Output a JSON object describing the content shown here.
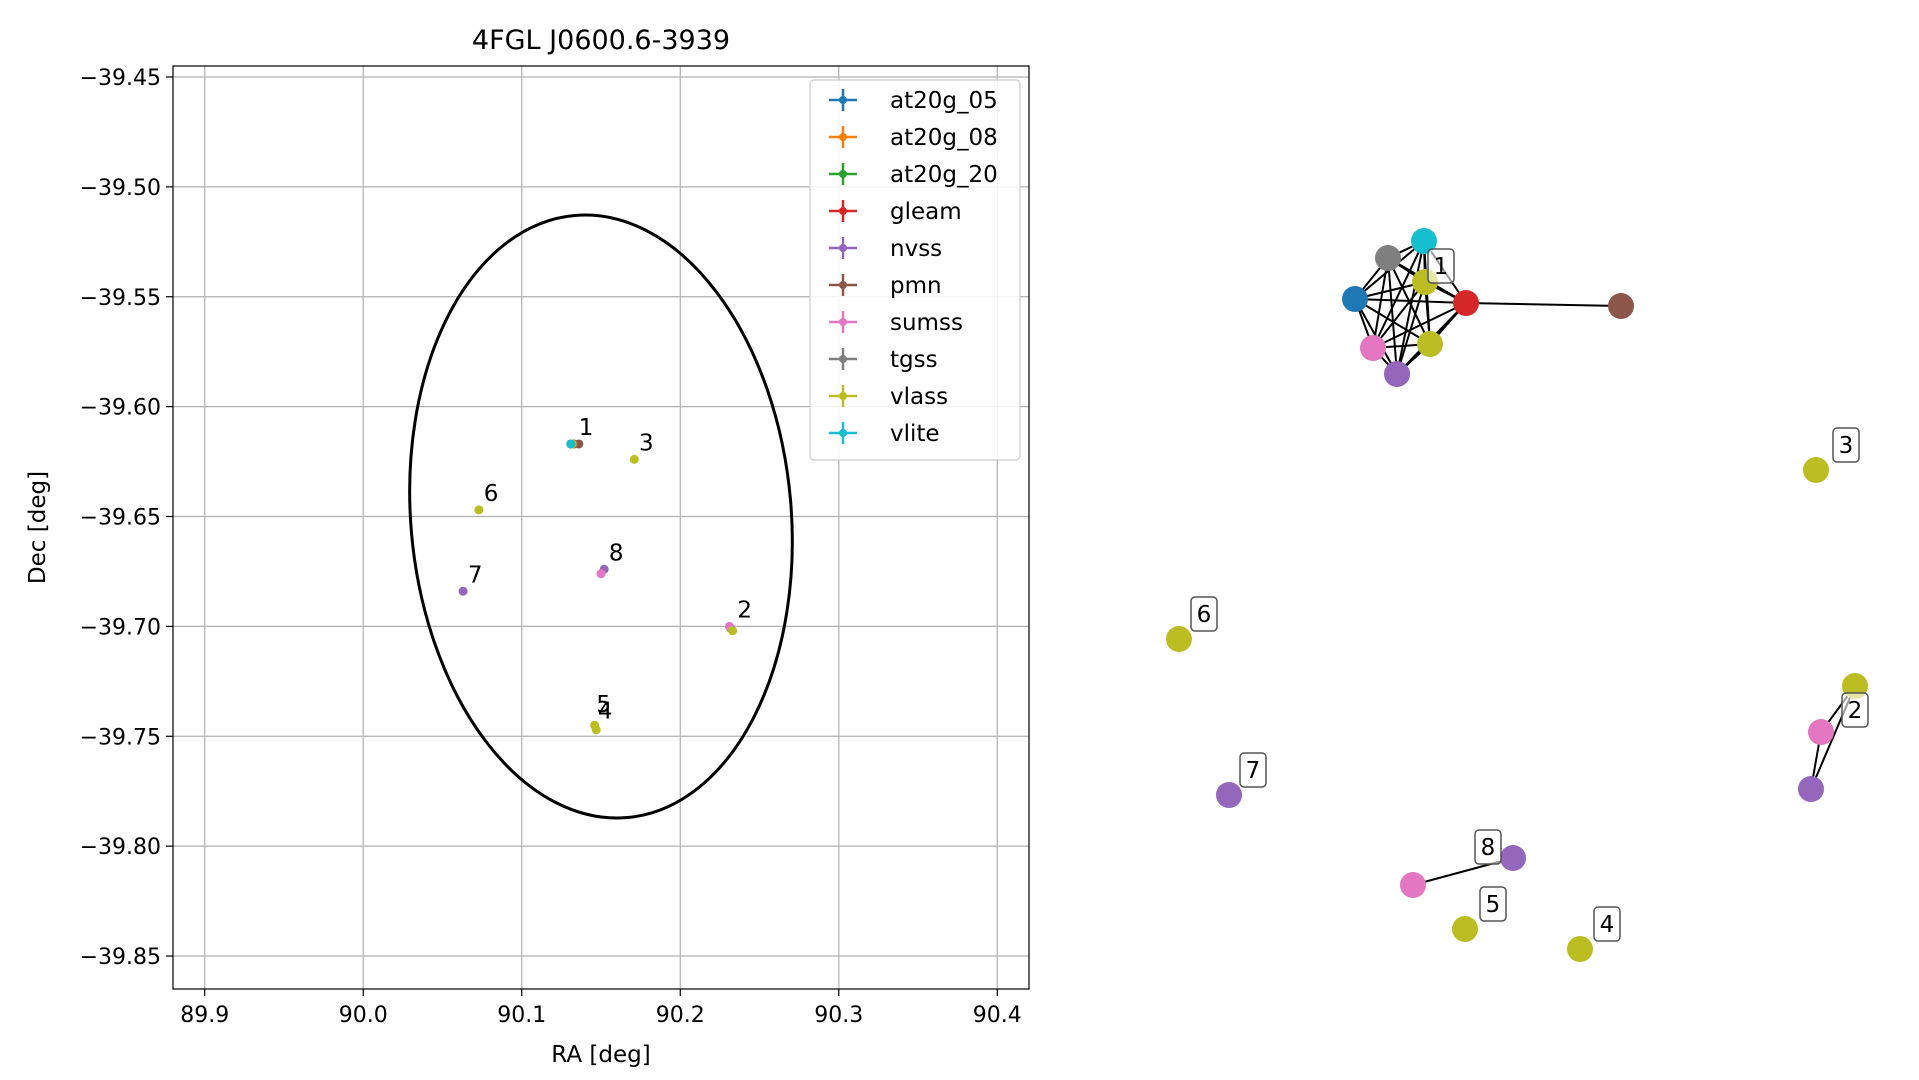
{
  "chart_data": [
    {
      "type": "scatter",
      "title": "4FGL J0600.6-3939",
      "xlabel": "RA [deg]",
      "ylabel": "Dec [deg]",
      "xlim": [
        89.88,
        90.42
      ],
      "ylim": [
        -39.865,
        -39.445
      ],
      "x_ticks": [
        89.9,
        90.0,
        90.1,
        90.2,
        90.3,
        90.4
      ],
      "x_tick_labels": [
        "89.9",
        "90.0",
        "90.1",
        "90.2",
        "90.3",
        "90.4"
      ],
      "y_ticks": [
        -39.45,
        -39.5,
        -39.55,
        -39.6,
        -39.65,
        -39.7,
        -39.75,
        -39.8,
        -39.85
      ],
      "y_tick_labels": [
        "−39.45",
        "−39.50",
        "−39.55",
        "−39.60",
        "−39.65",
        "−39.70",
        "−39.75",
        "−39.80",
        "−39.85"
      ],
      "grid": true,
      "legend_position": "top-right",
      "ellipse": {
        "center": [
          90.15,
          -39.65
        ],
        "semi_width_ra": 0.12,
        "semi_height_dec": 0.1375,
        "rotation_deg": 5
      },
      "series": [
        {
          "name": "at20g_05",
          "color": "#1f77b4",
          "points": [
            [
              90.131,
              -39.617
            ]
          ]
        },
        {
          "name": "at20g_08",
          "color": "#ff7f0e",
          "points": [
            [
              90.131,
              -39.617
            ]
          ]
        },
        {
          "name": "at20g_20",
          "color": "#2ca02c",
          "points": [
            [
              90.131,
              -39.617
            ]
          ]
        },
        {
          "name": "gleam",
          "color": "#d62728",
          "points": [
            [
              90.133,
              -39.617
            ]
          ]
        },
        {
          "name": "nvss",
          "color": "#9467bd",
          "points": [
            [
              90.063,
              -39.684
            ],
            [
              90.152,
              -39.674
            ],
            [
              90.232,
              -39.701
            ]
          ]
        },
        {
          "name": "pmn",
          "color": "#8c564b",
          "points": [
            [
              90.136,
              -39.617
            ]
          ]
        },
        {
          "name": "sumss",
          "color": "#e377c2",
          "points": [
            [
              90.131,
              -39.617
            ],
            [
              90.15,
              -39.676
            ],
            [
              90.231,
              -39.7
            ]
          ]
        },
        {
          "name": "tgss",
          "color": "#7f7f7f",
          "points": [
            [
              90.132,
              -39.617
            ]
          ]
        },
        {
          "name": "vlass",
          "color": "#bcbd22",
          "points": [
            [
              90.132,
              -39.617
            ],
            [
              90.171,
              -39.624
            ],
            [
              90.073,
              -39.647
            ],
            [
              90.146,
              -39.745
            ],
            [
              90.147,
              -39.747
            ],
            [
              90.233,
              -39.702
            ]
          ]
        },
        {
          "name": "vlite",
          "color": "#17becf",
          "points": [
            [
              90.131,
              -39.617
            ]
          ]
        }
      ],
      "cluster_labels": [
        {
          "label": "1",
          "ra": 90.136,
          "dec": -39.613
        },
        {
          "label": "2",
          "ra": 90.236,
          "dec": -39.696
        },
        {
          "label": "3",
          "ra": 90.174,
          "dec": -39.62
        },
        {
          "label": "4",
          "ra": 90.148,
          "dec": -39.742
        },
        {
          "label": "5",
          "ra": 90.147,
          "dec": -39.739
        },
        {
          "label": "6",
          "ra": 90.076,
          "dec": -39.643
        },
        {
          "label": "7",
          "ra": 90.066,
          "dec": -39.68
        },
        {
          "label": "8",
          "ra": 90.155,
          "dec": -39.67
        }
      ]
    },
    {
      "type": "network",
      "nodes": [
        {
          "id": "n_blue",
          "color": "#1f77b4"
        },
        {
          "id": "n_grey",
          "color": "#7f7f7f"
        },
        {
          "id": "n_cyan",
          "color": "#17becf"
        },
        {
          "id": "n_olive1",
          "color": "#bcbd22"
        },
        {
          "id": "n_red",
          "color": "#d62728"
        },
        {
          "id": "n_pink1",
          "color": "#e377c2"
        },
        {
          "id": "n_olive2",
          "color": "#bcbd22"
        },
        {
          "id": "n_purple1",
          "color": "#9467bd"
        },
        {
          "id": "n_brown",
          "color": "#8c564b"
        },
        {
          "id": "n_olive3",
          "color": "#bcbd22"
        },
        {
          "id": "n_olive6",
          "color": "#bcbd22"
        },
        {
          "id": "n_purple7",
          "color": "#9467bd"
        },
        {
          "id": "n_oliveR",
          "color": "#bcbd22"
        },
        {
          "id": "n_pink2",
          "color": "#e377c2"
        },
        {
          "id": "n_purple2",
          "color": "#9467bd"
        },
        {
          "id": "n_purple8",
          "color": "#9467bd"
        },
        {
          "id": "n_pink8",
          "color": "#e377c2"
        },
        {
          "id": "n_olive5",
          "color": "#bcbd22"
        },
        {
          "id": "n_olive4",
          "color": "#bcbd22"
        }
      ],
      "edges": [
        [
          "n_blue",
          "n_grey"
        ],
        [
          "n_blue",
          "n_cyan"
        ],
        [
          "n_blue",
          "n_olive1"
        ],
        [
          "n_blue",
          "n_red"
        ],
        [
          "n_blue",
          "n_pink1"
        ],
        [
          "n_blue",
          "n_olive2"
        ],
        [
          "n_blue",
          "n_purple1"
        ],
        [
          "n_grey",
          "n_cyan"
        ],
        [
          "n_grey",
          "n_olive1"
        ],
        [
          "n_grey",
          "n_red"
        ],
        [
          "n_grey",
          "n_pink1"
        ],
        [
          "n_grey",
          "n_olive2"
        ],
        [
          "n_grey",
          "n_purple1"
        ],
        [
          "n_cyan",
          "n_olive1"
        ],
        [
          "n_cyan",
          "n_red"
        ],
        [
          "n_cyan",
          "n_pink1"
        ],
        [
          "n_cyan",
          "n_olive2"
        ],
        [
          "n_cyan",
          "n_purple1"
        ],
        [
          "n_olive1",
          "n_red"
        ],
        [
          "n_olive1",
          "n_pink1"
        ],
        [
          "n_olive1",
          "n_olive2"
        ],
        [
          "n_olive1",
          "n_purple1"
        ],
        [
          "n_red",
          "n_pink1"
        ],
        [
          "n_red",
          "n_olive2"
        ],
        [
          "n_red",
          "n_purple1"
        ],
        [
          "n_red",
          "n_brown"
        ],
        [
          "n_pink1",
          "n_olive2"
        ],
        [
          "n_pink1",
          "n_purple1"
        ],
        [
          "n_olive2",
          "n_purple1"
        ],
        [
          "n_oliveR",
          "n_pink2"
        ],
        [
          "n_pink2",
          "n_purple2"
        ],
        [
          "n_oliveR",
          "n_purple2"
        ],
        [
          "n_purple8",
          "n_pink8"
        ]
      ],
      "labels": [
        {
          "text": "1",
          "node": "n_olive1"
        },
        {
          "text": "2",
          "node": "n_pink2"
        },
        {
          "text": "3",
          "node": "n_olive3"
        },
        {
          "text": "4",
          "node": "n_olive4"
        },
        {
          "text": "5",
          "node": "n_olive5"
        },
        {
          "text": "6",
          "node": "n_olive6"
        },
        {
          "text": "7",
          "node": "n_purple7"
        },
        {
          "text": "8",
          "node": "n_purple8"
        }
      ]
    }
  ]
}
